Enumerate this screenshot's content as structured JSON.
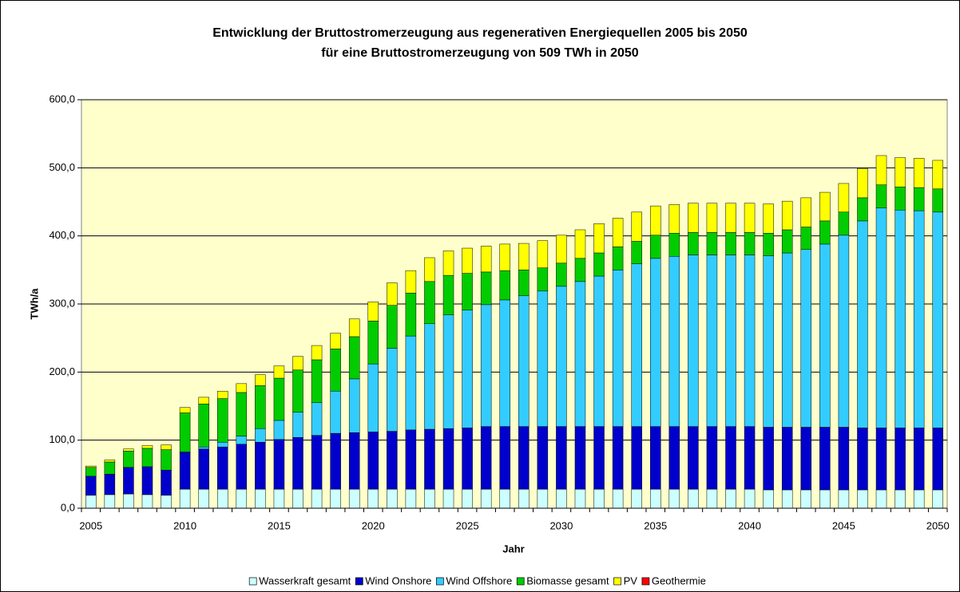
{
  "chart_data": {
    "type": "stacked_bar",
    "title": "Entwicklung der Bruttostromerzeugung aus regenerativen Energiequellen 2005 bis 2050",
    "subtitle": "für eine Bruttostromerzeugung von 509 TWh in 2050",
    "x_label": "Jahr",
    "y_label": "TWh/a",
    "categories": [
      "2005",
      null,
      null,
      null,
      null,
      "2010",
      null,
      null,
      null,
      null,
      "2015",
      null,
      null,
      null,
      null,
      "2020",
      null,
      null,
      null,
      null,
      "2025",
      null,
      null,
      null,
      null,
      "2030",
      null,
      null,
      null,
      null,
      "2035",
      null,
      null,
      null,
      null,
      "2040",
      null,
      null,
      null,
      null,
      "2045",
      null,
      null,
      null,
      null,
      "2050"
    ],
    "ylim": [
      0,
      600
    ],
    "yticks": [
      {
        "value": 0,
        "label": "0,0"
      },
      {
        "value": 100,
        "label": "100,0"
      },
      {
        "value": 200,
        "label": "200,0"
      },
      {
        "value": 300,
        "label": "300,0"
      },
      {
        "value": 400,
        "label": "400,0"
      },
      {
        "value": 500,
        "label": "500,0"
      },
      {
        "value": 600,
        "label": "600,0"
      }
    ],
    "grid": true,
    "legend": "bottom",
    "series": [
      {
        "name": "Wasserkraft gesamt",
        "color": "#ccffff",
        "values": [
          19,
          20,
          21,
          20,
          19,
          28,
          28,
          28,
          28,
          28,
          28,
          28,
          28,
          28,
          28,
          28,
          28,
          28,
          28,
          28,
          28,
          28,
          28,
          28,
          28,
          28,
          28,
          28,
          28,
          28,
          28,
          28,
          28,
          28,
          28,
          28,
          27,
          27,
          27,
          27,
          27,
          27,
          27,
          27,
          27,
          27
        ]
      },
      {
        "name": "Wind Onshore",
        "color": "#0000cc",
        "values": [
          28,
          30,
          39,
          41,
          37,
          54,
          59,
          62,
          66,
          69,
          73,
          76,
          79,
          82,
          83,
          84,
          85,
          87,
          88,
          89,
          90,
          92,
          92,
          92,
          92,
          92,
          92,
          92,
          92,
          92,
          92,
          92,
          92,
          92,
          92,
          92,
          92,
          92,
          92,
          92,
          92,
          91,
          91,
          91,
          91,
          91
        ]
      },
      {
        "name": "Wind Offshore",
        "color": "#33ccff",
        "values": [
          0,
          0,
          0,
          0,
          0,
          1,
          3,
          7,
          12,
          20,
          28,
          37,
          48,
          62,
          79,
          100,
          122,
          138,
          155,
          167,
          173,
          179,
          186,
          192,
          199,
          206,
          213,
          221,
          230,
          239,
          247,
          250,
          252,
          252,
          252,
          252,
          252,
          256,
          261,
          269,
          282,
          304,
          323,
          320,
          319,
          317
        ]
      },
      {
        "name": "Biomasse gesamt",
        "color": "#00cc00",
        "values": [
          13,
          18,
          24,
          27,
          30,
          57,
          63,
          64,
          64,
          63,
          62,
          62,
          63,
          62,
          62,
          63,
          63,
          63,
          62,
          58,
          54,
          48,
          43,
          38,
          34,
          34,
          34,
          34,
          34,
          33,
          34,
          34,
          33,
          33,
          33,
          33,
          33,
          34,
          33,
          34,
          34,
          34,
          34,
          34,
          34,
          34
        ]
      },
      {
        "name": "PV",
        "color": "#ffff00",
        "values": [
          2,
          3,
          3,
          4,
          7,
          8,
          10,
          11,
          13,
          16,
          18,
          20,
          21,
          23,
          26,
          28,
          33,
          33,
          35,
          36,
          37,
          38,
          39,
          39,
          40,
          41,
          42,
          43,
          42,
          43,
          43,
          42,
          43,
          43,
          43,
          43,
          43,
          42,
          43,
          42,
          42,
          43,
          43,
          43,
          43,
          42
        ]
      },
      {
        "name": "Geothermie",
        "color": "#ff0000",
        "values": [
          0,
          0,
          0,
          0,
          0,
          0,
          0,
          0,
          0,
          0,
          0,
          0,
          0,
          0,
          0,
          0,
          0,
          0,
          0,
          0,
          0,
          0,
          0,
          0,
          0,
          0,
          0,
          0,
          0,
          0,
          0,
          0,
          0,
          0,
          0,
          0,
          0,
          0,
          0,
          0,
          0,
          0,
          0,
          0,
          0,
          0
        ]
      }
    ]
  }
}
